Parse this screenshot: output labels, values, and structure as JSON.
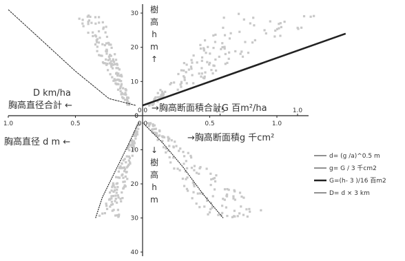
{
  "chart_data": {
    "type": "scatter",
    "axes": {
      "upper_y_ticks": [
        "30",
        "20",
        "10",
        "0"
      ],
      "lower_y_ticks": [
        "0",
        "10",
        "20",
        "30",
        "40"
      ],
      "upper_x_ticks": [
        "0.0",
        "0.5",
        "1.0"
      ],
      "lower_x_ticks_left": [
        "1.0",
        "0.5",
        "0.0"
      ],
      "lower_x_ticks_right": [
        "0.5",
        "1.0"
      ]
    },
    "labels": {
      "tree_height_up": "樹\n高\nh\nm\n↑",
      "tree_height_down": "↓\n樹\n高\nh\nm",
      "D_unit": "D km/ha",
      "D_name": "胸高直径合計 ←",
      "d_name": "胸高直径 d m ←",
      "G_name": "→胸高断面積合計G 百m²/ha",
      "g_name": "→胸高断面積g 千cm²"
    },
    "legend": [
      {
        "label": "d= (g /a)^0.5 m",
        "style": "thin"
      },
      {
        "label": "g= G / 3 千cm2",
        "style": "thin"
      },
      {
        "label": "G=(h- 3 )/16 百m2",
        "style": "thick"
      },
      {
        "label": "D= d × 3 km",
        "style": "thin"
      }
    ],
    "curves": {
      "G_line": {
        "formula": "G=(h-3)/16",
        "x": [
          0.0,
          1.31
        ],
        "y": [
          3,
          24
        ]
      },
      "D_curve": {
        "x": [
          1.0,
          0.75,
          0.5,
          0.25,
          0.05
        ],
        "y": [
          31,
          22,
          13,
          5,
          3
        ]
      },
      "d_curve": {
        "x": [
          0.35,
          0.3,
          0.2,
          0.1,
          0.03
        ],
        "y": [
          30,
          24,
          16,
          8,
          2
        ]
      },
      "g_curve": {
        "x": [
          0.0,
          0.15,
          0.3,
          0.45,
          0.6
        ],
        "y": [
          2,
          8,
          15,
          23,
          30
        ]
      }
    },
    "series": [
      {
        "quadrant": "upper-left",
        "variable": "D",
        "x_range": [
          0.05,
          0.5
        ],
        "y_range": [
          3,
          30
        ]
      },
      {
        "quadrant": "upper-right",
        "variable": "G",
        "x_range": [
          0.0,
          1.1
        ],
        "y_range": [
          3,
          30
        ]
      },
      {
        "quadrant": "lower-left",
        "variable": "d",
        "x_range": [
          0.0,
          0.3
        ],
        "y_range": [
          2,
          30
        ]
      },
      {
        "quadrant": "lower-right",
        "variable": "g",
        "x_range": [
          0.0,
          1.0
        ],
        "y_range": [
          2,
          30
        ]
      }
    ]
  }
}
